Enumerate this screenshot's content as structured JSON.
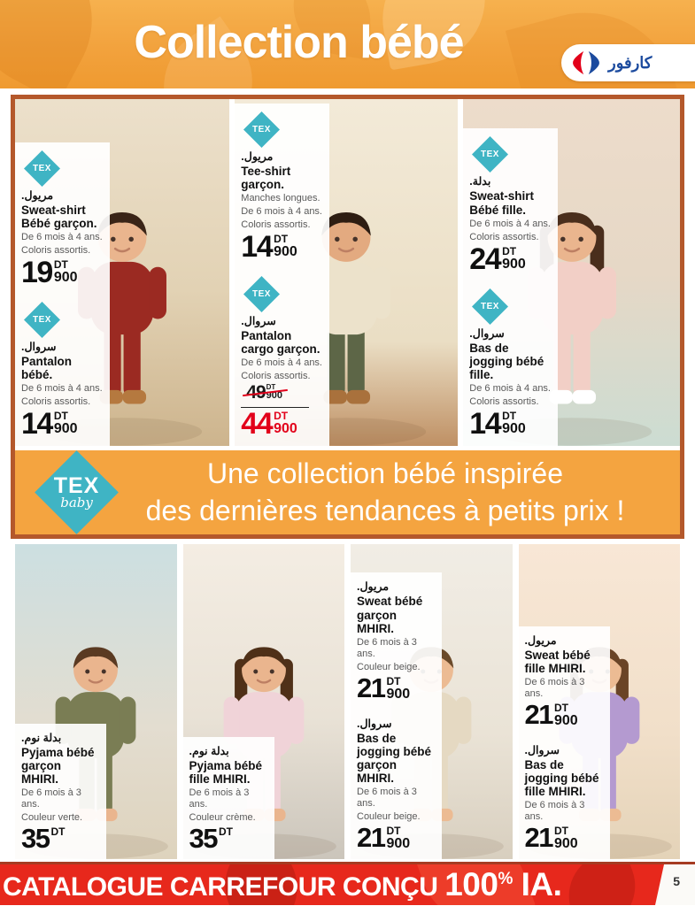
{
  "header": {
    "title": "Collection bébé",
    "carrefour_arabic": "كارفور"
  },
  "tex_banner": {
    "logo_top": "TEX",
    "logo_sub": "baby",
    "line1": "Une collection bébé inspirée",
    "line2": "des dernières tendances à petits prix !"
  },
  "footer": {
    "text": "CATALOGUE CARREFOUR CONÇU ",
    "big": "100",
    "percent": "%",
    "suffix": " IA.",
    "page_number": "5"
  },
  "colors": {
    "header_orange": "#f2a23d",
    "frame_brown": "#b4582b",
    "banner_orange": "#f4a440",
    "tex_teal": "#3fb4c4",
    "footer_red": "#e7281c",
    "price_red": "#e2001a",
    "carrefour_blue": "#1b4a9e",
    "carrefour_red": "#e2001a"
  },
  "top_row": [
    {
      "photo_name": "photo-boy-red-sweatsuit",
      "scene": "ph-t1",
      "photo": {
        "hair": "#3a2417",
        "skin": "#eab58e",
        "top": "#9b2a22",
        "bottom": "#9b2a22",
        "shoes": "#b5793f",
        "long_hair": false
      },
      "labels": [
        {
          "tex": true,
          "name_ar": "مريول.",
          "name_fr": "Sweat-shirt Bébé garçon.",
          "details": [
            "De 6 mois à 4 ans.",
            "Coloris assortis."
          ],
          "price": {
            "amount": "19",
            "currency": "DT",
            "cents": "900"
          }
        },
        {
          "tex": true,
          "name_ar": "سروال.",
          "name_fr": "Pantalon bébé.",
          "details": [
            "De 6 mois à 4 ans.",
            "Coloris assortis."
          ],
          "price": {
            "amount": "14",
            "currency": "DT",
            "cents": "900"
          }
        }
      ]
    },
    {
      "photo_name": "photo-boy-tee-cargo",
      "scene": "ph-t2",
      "photo": {
        "hair": "#2e1d12",
        "skin": "#e3aa80",
        "top": "#ece2cb",
        "bottom": "#5d6647",
        "shoes": "#a9713c",
        "long_hair": false
      },
      "labels": [
        {
          "tex": true,
          "name_ar": "مريول.",
          "name_fr": "Tee-shirt garçon.",
          "details": [
            "Manches longues.",
            "De 6 mois à 4 ans.",
            "Coloris assortis."
          ],
          "price": {
            "amount": "14",
            "currency": "DT",
            "cents": "900"
          }
        },
        {
          "tex": true,
          "name_ar": "سروال.",
          "name_fr": "Pantalon cargo garçon.",
          "details": [
            "De 6 mois à 4 ans.",
            "Coloris assortis."
          ],
          "old_price": {
            "amount": "49",
            "currency": "DT",
            "cents": "900"
          },
          "price": {
            "amount": "44",
            "currency": "DT",
            "cents": "900"
          },
          "sale": true
        }
      ]
    },
    {
      "photo_name": "photo-girl-pink-sweatsuit",
      "scene": "ph-t3",
      "photo": {
        "hair": "#4a2e1c",
        "skin": "#eab58e",
        "top": "#f2cfc6",
        "bottom": "#f2cfc6",
        "shoes": "#ffffff",
        "long_hair": true
      },
      "labels": [
        {
          "tex": true,
          "name_ar": "بدلة.",
          "name_fr": "Sweat-shirt Bébé fille.",
          "details": [
            "De 6 mois à 4 ans.",
            "Coloris assortis."
          ],
          "price": {
            "amount": "24",
            "currency": "DT",
            "cents": "900"
          }
        },
        {
          "tex": true,
          "name_ar": "سروال.",
          "name_fr": "Bas de jogging bébé fille.",
          "details": [
            "De 6 mois à 4 ans.",
            "Coloris assortis."
          ],
          "price": {
            "amount": "14",
            "currency": "DT",
            "cents": "900"
          }
        }
      ]
    }
  ],
  "bottom_row": [
    {
      "photo_name": "photo-toddler-green-pyjama",
      "scene": "ph-b1",
      "photo": {
        "hair": "#5a3a22",
        "skin": "#eab58e",
        "top": "#7a7d54",
        "bottom": "#7a7d54",
        "shoes": "#eab58e",
        "long_hair": false
      },
      "labels": [
        {
          "tex": false,
          "name_ar": "بدلة نوم.",
          "name_fr": "Pyjama bébé garçon MHIRI.",
          "details": [
            "De 6 mois à 3 ans.",
            "Couleur verte."
          ],
          "price": {
            "amount": "35",
            "currency": "DT"
          }
        }
      ]
    },
    {
      "photo_name": "photo-girl-pink-pyjama",
      "scene": "ph-b2",
      "photo": {
        "hair": "#4f3018",
        "skin": "#eab58e",
        "top": "#f0d3d8",
        "bottom": "#f0d3d8",
        "shoes": "#eab58e",
        "long_hair": true
      },
      "labels": [
        {
          "tex": false,
          "name_ar": "بدلة نوم.",
          "name_fr": "Pyjama bébé fille MHIRI.",
          "details": [
            "De 6 mois à 3 ans.",
            "Couleur crème."
          ],
          "price": {
            "amount": "35",
            "currency": "DT"
          }
        }
      ]
    },
    {
      "photo_name": "photo-baby-beige-sweat",
      "scene": "ph-b3",
      "photo": {
        "hair": "#6b4a2a",
        "skin": "#ecbb93",
        "top": "#e5d9c2",
        "bottom": "#e5d9c2",
        "shoes": "#ecbb93",
        "long_hair": false
      },
      "labels": [
        {
          "tex": false,
          "name_ar": "مريول.",
          "name_fr": "Sweat bébé garçon MHIRI.",
          "details": [
            "De 6 mois à 3 ans.",
            "Couleur beige."
          ],
          "price": {
            "amount": "21",
            "currency": "DT",
            "cents": "900"
          }
        },
        {
          "tex": false,
          "name_ar": "سروال.",
          "name_fr": "Bas de jogging bébé garçon MHIRI.",
          "details": [
            "De 6 mois à 3 ans.",
            "Couleur beige."
          ],
          "price": {
            "amount": "21",
            "currency": "DT",
            "cents": "900"
          }
        }
      ]
    },
    {
      "photo_name": "photo-girl-lilac-sweat",
      "scene": "ph-b4",
      "photo": {
        "hair": "#6a4426",
        "skin": "#ecbb93",
        "top": "#b49ad0",
        "bottom": "#b49ad0",
        "shoes": "#ecbb93",
        "long_hair": true
      },
      "labels": [
        {
          "tex": false,
          "name_ar": "مريول.",
          "name_fr": "Sweat bébé fille MHIRI.",
          "details": [
            "De 6 mois à 3 ans."
          ],
          "price": {
            "amount": "21",
            "currency": "DT",
            "cents": "900"
          }
        },
        {
          "tex": false,
          "name_ar": "سروال.",
          "name_fr": "Bas de jogging bébé fille MHIRI.",
          "details": [
            "De 6 mois à 3 ans."
          ],
          "price": {
            "amount": "21",
            "currency": "DT",
            "cents": "900"
          }
        }
      ]
    }
  ]
}
